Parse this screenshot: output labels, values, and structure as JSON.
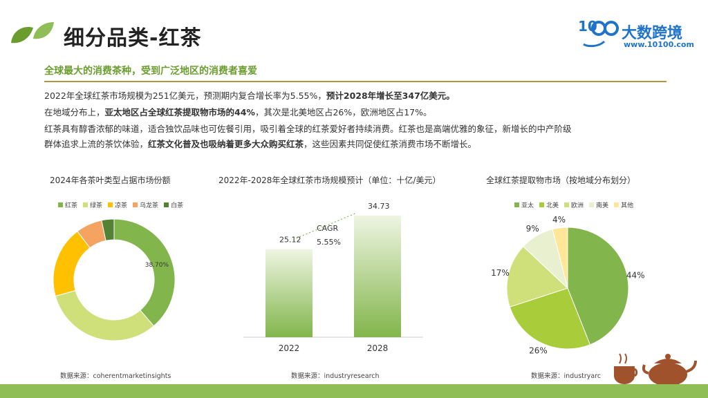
{
  "header": {
    "title": "细分品类-红茶",
    "subtitle": "全球最大的消费茶种，受到广泛地区的消费者喜爱",
    "logo_text": "大数跨境",
    "logo_url": "www.10100.com",
    "logo_digits": "10",
    "colors": {
      "accent_green": "#6a9d2e",
      "rule": "#b8933f",
      "brand_blue": "#1f73c8"
    }
  },
  "body": {
    "p1_a": "2022年全球红茶市场规模为251亿美元，预测期内复合增长率为5.55%，",
    "p1_b": "预计2028年增长至347亿美元。",
    "p2_a": "在地域分布上，",
    "p2_b": "亚太地区占全球红茶提取物市场的44%",
    "p2_c": "，其次是北美地区占26%，欧洲地区占17%。",
    "p3": "红茶具有醇香浓郁的味道，适合独饮品味也可佐餐引用，吸引着全球的红茶爱好者持续消费。红茶也是高端优雅的象征，新增长的中产阶级",
    "p4_a": "群体追求上流的茶饮体验，",
    "p4_b": "红茶文化普及也吸纳着更多大众购买红茶",
    "p4_c": "，这些因素共同促使红茶消费市场不断增长。"
  },
  "chart_data": [
    {
      "type": "pie",
      "donut": true,
      "title": "2024年各茶叶类型占据市场份额",
      "categories": [
        "红茶",
        "绿茶",
        "凉茶",
        "乌龙茶",
        "白茶"
      ],
      "values": [
        38.7,
        32,
        19,
        7,
        3.3
      ],
      "colors": [
        "#82b54b",
        "#cfe07a",
        "#ffc000",
        "#f4a460",
        "#548235"
      ],
      "data_labels": [
        "38.70%",
        "",
        "",
        "",
        ""
      ],
      "legend": "top",
      "source": "数据来源：coherentmarketinsights"
    },
    {
      "type": "bar",
      "title": "2022年-2028年全球红茶市场规模预计（单位：十亿/美元）",
      "categories": [
        "2022",
        "2028"
      ],
      "values": [
        25.12,
        34.73
      ],
      "value_labels": [
        "25.12",
        "34.73"
      ],
      "annotation": {
        "label": "CAGR",
        "value": "5.55%"
      },
      "color": "#82b54b",
      "source": "数据来源：industryresearch"
    },
    {
      "type": "pie",
      "title": "全球红茶提取物市场（按地域分布划分）",
      "categories": [
        "亚太",
        "北美",
        "欧洲",
        "南美",
        "其他"
      ],
      "values": [
        44,
        26,
        17,
        9,
        4
      ],
      "data_labels": [
        "44%",
        "26%",
        "17%",
        "9%",
        "4%"
      ],
      "colors": [
        "#82b54b",
        "#a8cc3a",
        "#cfe07a",
        "#e8f0d0",
        "#ffe699"
      ],
      "legend": "top",
      "source": "数据来源：industryarc"
    }
  ]
}
